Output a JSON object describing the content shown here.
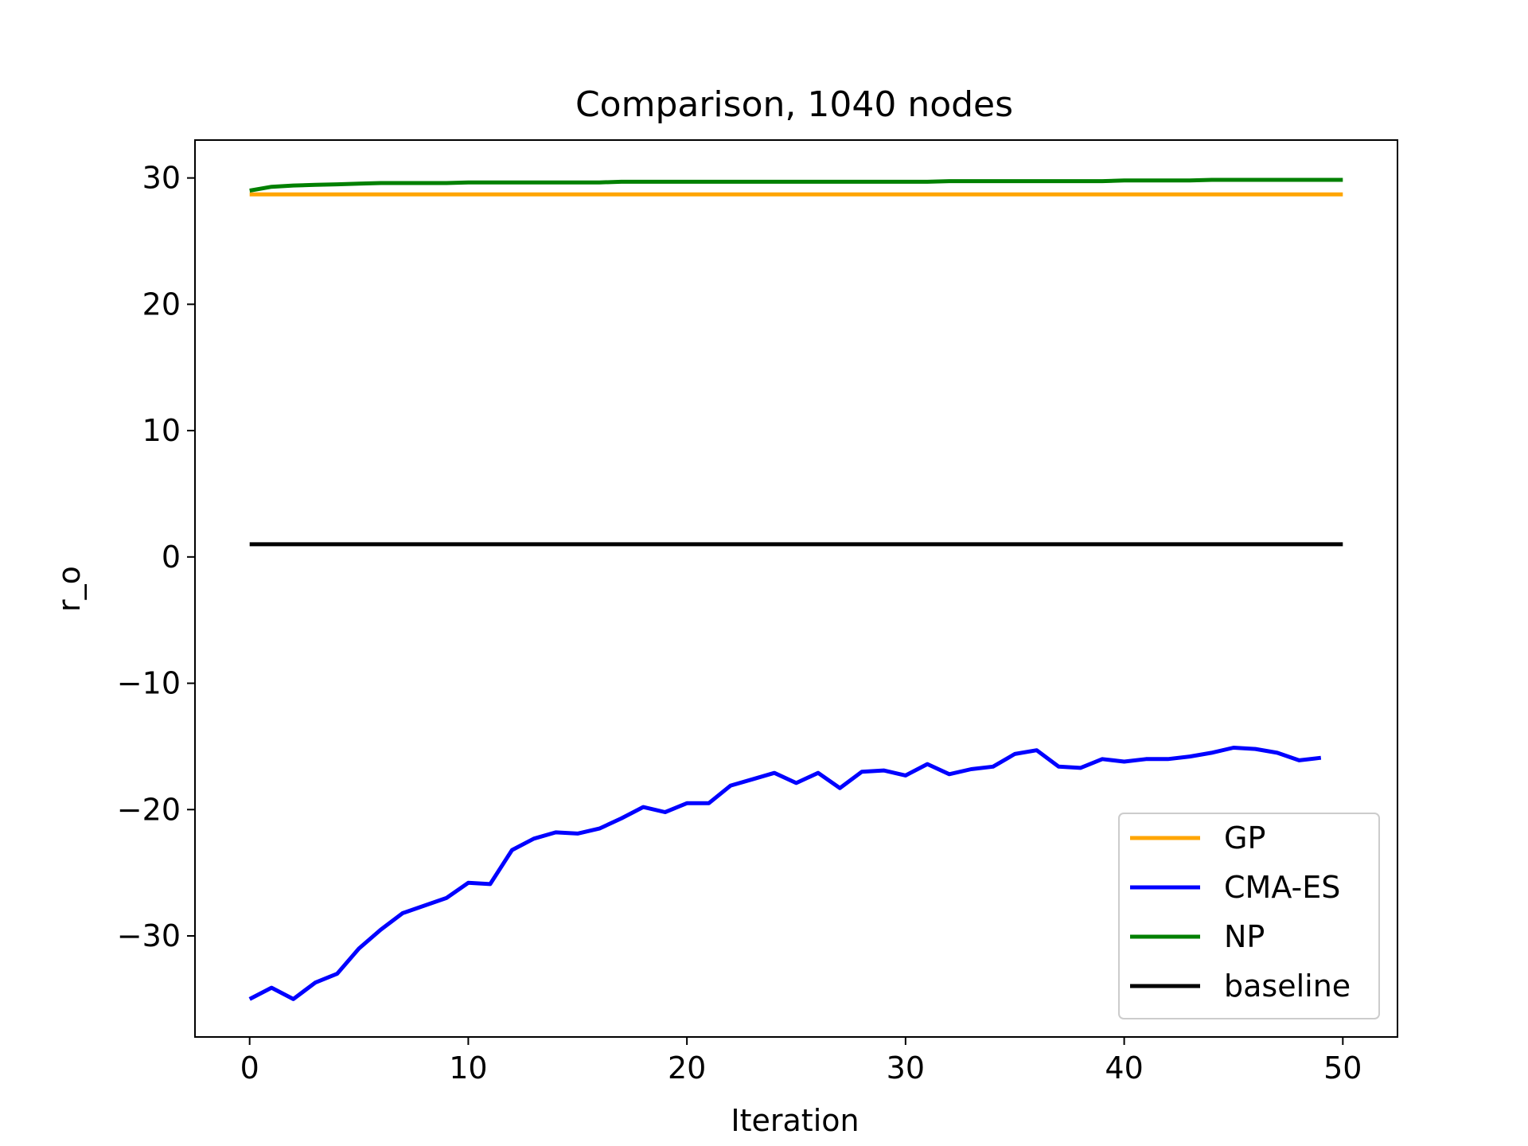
{
  "chart_data": {
    "type": "line",
    "title": "Comparison, 1040 nodes",
    "xlabel": "Iteration",
    "ylabel": "r_o",
    "xlim": [
      -2.5,
      52.5
    ],
    "ylim": [
      -38,
      33
    ],
    "xticks": [
      0,
      10,
      20,
      30,
      40,
      50
    ],
    "yticks": [
      -30,
      -20,
      -10,
      0,
      10,
      20,
      30
    ],
    "xtick_labels": [
      "0",
      "10",
      "20",
      "30",
      "40",
      "50"
    ],
    "ytick_labels": [
      "−30",
      "−20",
      "−10",
      "0",
      "10",
      "20",
      "30"
    ],
    "grid": false,
    "legend_position": "lower-right",
    "series": [
      {
        "name": "GP",
        "color": "#FFA500",
        "x": [
          0,
          50
        ],
        "y": [
          28.7,
          28.7
        ]
      },
      {
        "name": "CMA-ES",
        "color": "#0000FF",
        "x": [
          0,
          1,
          2,
          3,
          4,
          5,
          6,
          7,
          8,
          9,
          10,
          11,
          12,
          13,
          14,
          15,
          16,
          17,
          18,
          19,
          20,
          21,
          22,
          23,
          24,
          25,
          26,
          27,
          28,
          29,
          30,
          31,
          32,
          33,
          34,
          35,
          36,
          37,
          38,
          39,
          40,
          41,
          42,
          43,
          44,
          45,
          46,
          47,
          48,
          49
        ],
        "y": [
          -35.0,
          -34.1,
          -35.0,
          -33.7,
          -33.0,
          -31.0,
          -29.5,
          -28.2,
          -27.6,
          -27.0,
          -25.8,
          -25.9,
          -23.2,
          -22.3,
          -21.8,
          -21.9,
          -21.5,
          -20.7,
          -19.8,
          -20.2,
          -19.5,
          -19.5,
          -18.1,
          -17.6,
          -17.1,
          -17.9,
          -17.1,
          -18.3,
          -17.0,
          -16.9,
          -17.3,
          -16.4,
          -17.2,
          -16.8,
          -16.6,
          -15.6,
          -15.3,
          -16.6,
          -16.7,
          -16.0,
          -16.2,
          -16.0,
          -16.0,
          -15.8,
          -15.5,
          -15.1,
          -15.2,
          -15.5,
          -16.1,
          -15.9
        ]
      },
      {
        "name": "NP",
        "color": "#008000",
        "x": [
          0,
          1,
          2,
          3,
          4,
          5,
          6,
          7,
          8,
          9,
          10,
          11,
          12,
          13,
          14,
          15,
          16,
          17,
          18,
          19,
          20,
          21,
          22,
          23,
          24,
          25,
          26,
          27,
          28,
          29,
          30,
          31,
          32,
          33,
          34,
          35,
          36,
          37,
          38,
          39,
          40,
          41,
          42,
          43,
          44,
          45,
          46,
          47,
          48,
          49,
          50
        ],
        "y": [
          29.0,
          29.3,
          29.4,
          29.45,
          29.5,
          29.55,
          29.6,
          29.6,
          29.6,
          29.6,
          29.65,
          29.65,
          29.65,
          29.65,
          29.65,
          29.65,
          29.65,
          29.7,
          29.7,
          29.7,
          29.7,
          29.7,
          29.7,
          29.7,
          29.7,
          29.7,
          29.7,
          29.7,
          29.7,
          29.7,
          29.7,
          29.7,
          29.75,
          29.75,
          29.75,
          29.75,
          29.75,
          29.75,
          29.75,
          29.75,
          29.8,
          29.8,
          29.8,
          29.8,
          29.85,
          29.85,
          29.85,
          29.85,
          29.85,
          29.85,
          29.85
        ]
      },
      {
        "name": "baseline",
        "color": "#000000",
        "x": [
          0,
          50
        ],
        "y": [
          1.0,
          1.0
        ]
      }
    ]
  }
}
